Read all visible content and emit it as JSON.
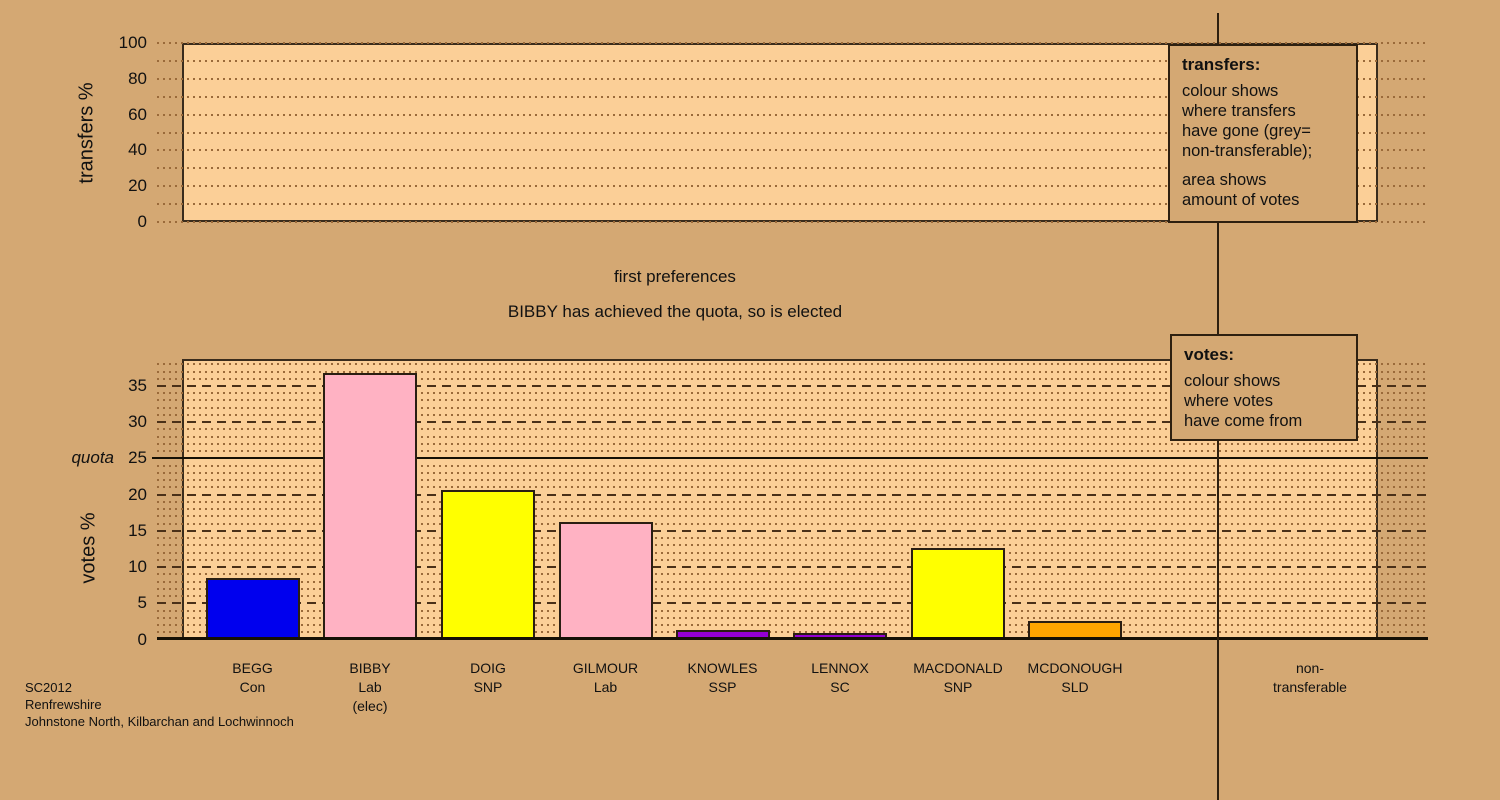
{
  "page": {
    "background_color": "#d4a873",
    "footer_lines": [
      "SC2012",
      "Renfrewshire",
      "Johnstone North, Kilbarchan and Lochwinnoch"
    ]
  },
  "stage_text": {
    "line1": "first preferences",
    "line2": "BIBBY has achieved the quota, so is elected"
  },
  "legends": {
    "transfers": {
      "title": "transfers:",
      "body1_lines": [
        "colour shows",
        "where transfers",
        "have gone (grey=",
        "non-transferable);"
      ],
      "body2_lines": [
        "area shows",
        "amount of votes"
      ]
    },
    "votes": {
      "title": "votes:",
      "body1_lines": [
        "colour shows",
        "where votes",
        "have come from"
      ]
    }
  },
  "chart_data": [
    {
      "id": "transfers",
      "type": "bar",
      "ylabel": "transfers %",
      "ylim": [
        0,
        100
      ],
      "yticks": [
        0,
        20,
        40,
        60,
        80,
        100
      ],
      "grid": "dotted horizontal line every 10, grid on",
      "legend_position": "right overlay box",
      "categories": [],
      "values": []
    },
    {
      "id": "votes",
      "type": "bar",
      "ylabel": "votes %",
      "ylim": [
        0,
        38.6
      ],
      "yticks": [
        0,
        5,
        10,
        15,
        20,
        25,
        30,
        35
      ],
      "quota": {
        "value": 25,
        "label": "quota"
      },
      "grid": "fine dotted every 1, dark dashed every 5, solid black line at quota 25",
      "legend_position": "right overlay box",
      "bar_colors_legend": {
        "Con": "#0000ee",
        "Lab": "#ffb2c3",
        "SNP": "#ffff00",
        "SSP": "#9400d3",
        "SC": "#9400d3",
        "SLD": "#ffa500"
      },
      "bars": [
        {
          "label_lines": [
            "BEGG",
            "Con"
          ],
          "value": 8.5,
          "color": "#0000ee"
        },
        {
          "label_lines": [
            "BIBBY",
            "Lab",
            "(elec)"
          ],
          "value": 36.8,
          "color": "#ffb2c3"
        },
        {
          "label_lines": [
            "DOIG",
            "SNP"
          ],
          "value": 20.6,
          "color": "#ffff00"
        },
        {
          "label_lines": [
            "GILMOUR",
            "Lab"
          ],
          "value": 16.2,
          "color": "#ffb2c3"
        },
        {
          "label_lines": [
            "KNOWLES",
            "SSP"
          ],
          "value": 1.3,
          "color": "#9400d3"
        },
        {
          "label_lines": [
            "LENNOX",
            "SC"
          ],
          "value": 0.9,
          "color": "#9400d3"
        },
        {
          "label_lines": [
            "MACDONALD",
            "SNP"
          ],
          "value": 12.7,
          "color": "#ffff00"
        },
        {
          "label_lines": [
            "MCDONOUGH",
            "SLD"
          ],
          "value": 2.5,
          "color": "#ffa500"
        },
        {
          "label_lines": [
            "non-",
            "transferable"
          ],
          "value": null,
          "color": null
        }
      ]
    }
  ]
}
